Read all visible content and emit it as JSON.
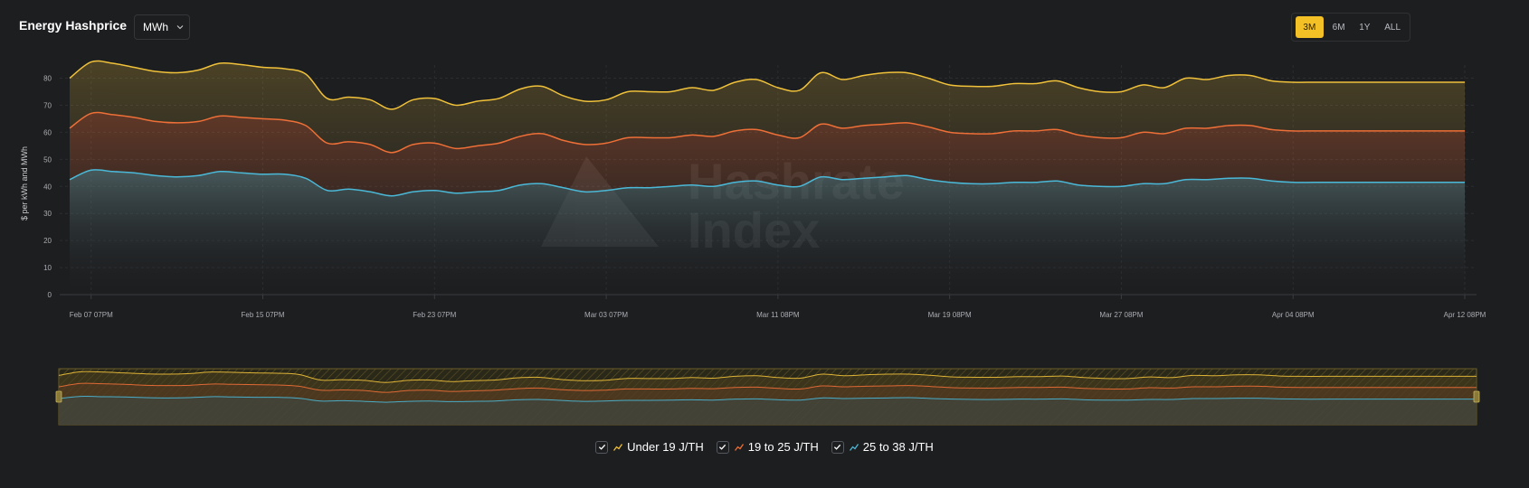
{
  "header": {
    "title": "Energy Hashprice",
    "unit_select": "MWh",
    "ranges": [
      "3M",
      "6M",
      "1Y",
      "ALL"
    ],
    "active_range": "3M"
  },
  "watermark": "Hashrate Index",
  "colors": {
    "background": "#1d1e20",
    "accent": "#f3c026",
    "series": [
      "#f0c13a",
      "#ee6f37",
      "#4ab9d8"
    ]
  },
  "icons": [
    "chevron-down-icon",
    "check-icon",
    "line-glyph-icon",
    "hashrate-index-logo"
  ],
  "chart_data": {
    "type": "area",
    "ylabel": "$ per kWh and MWh",
    "ylim": [
      0,
      85
    ],
    "yticks": [
      0,
      10,
      20,
      30,
      40,
      50,
      60,
      70,
      80
    ],
    "grid": true,
    "legend_placement": "bottom-center",
    "x_tick_labels": [
      "Feb 07 07PM",
      "Feb 15 07PM",
      "Feb 23 07PM",
      "Mar 03 07PM",
      "Mar 11 08PM",
      "Mar 19 08PM",
      "Mar 27 08PM",
      "Apr 04 08PM",
      "Apr 12 08PM"
    ],
    "x": [
      "Feb 06",
      "Feb 07",
      "Feb 08",
      "Feb 09",
      "Feb 10",
      "Feb 11",
      "Feb 12",
      "Feb 13",
      "Feb 14",
      "Feb 15",
      "Feb 16",
      "Feb 17",
      "Feb 18",
      "Feb 19",
      "Feb 20",
      "Feb 21",
      "Feb 22",
      "Feb 23",
      "Feb 24",
      "Feb 25",
      "Feb 26",
      "Feb 27",
      "Feb 28",
      "Mar 01",
      "Mar 02",
      "Mar 03",
      "Mar 04",
      "Mar 05",
      "Mar 06",
      "Mar 07",
      "Mar 08",
      "Mar 09",
      "Mar 10",
      "Mar 11",
      "Mar 12",
      "Mar 13",
      "Mar 14",
      "Mar 15",
      "Mar 16",
      "Mar 17",
      "Mar 18",
      "Mar 19",
      "Mar 20",
      "Mar 21",
      "Mar 22",
      "Mar 23",
      "Mar 24",
      "Mar 25",
      "Mar 26",
      "Mar 27",
      "Mar 28",
      "Mar 29",
      "Mar 30",
      "Mar 31",
      "Apr 01",
      "Apr 02",
      "Apr 03",
      "Apr 04",
      "Apr 05",
      "Apr 06",
      "Apr 07",
      "Apr 08",
      "Apr 09",
      "Apr 10",
      "Apr 11",
      "Apr 12"
    ],
    "series": [
      {
        "name": "Under 19 J/TH",
        "values": [
          80,
          86,
          85.5,
          84,
          82.5,
          82,
          83,
          85.5,
          85,
          84,
          83.5,
          81.5,
          72.5,
          73,
          72,
          68.5,
          72,
          72.5,
          70,
          71.5,
          72.5,
          76,
          77,
          73.5,
          71.5,
          72,
          75,
          75,
          75,
          76.5,
          75.5,
          78.5,
          79.5,
          76.5,
          75.5,
          82,
          79.5,
          81,
          82,
          82,
          80,
          77.5,
          77,
          77,
          78,
          78,
          79,
          76.5,
          75,
          75,
          77.5,
          76.5,
          80,
          79.5,
          81,
          81,
          79,
          78.5,
          78.5,
          78.5,
          78.5,
          78.5,
          78.5,
          78.5,
          78.5,
          78.5
        ]
      },
      {
        "name": "19 to 25 J/TH",
        "values": [
          61.5,
          67,
          66.5,
          65.5,
          64,
          63.5,
          64,
          66,
          65.5,
          65,
          64.5,
          62.5,
          56,
          56.5,
          55.5,
          52.5,
          55.5,
          56,
          54,
          55,
          56,
          58.5,
          59.5,
          57,
          55.5,
          56,
          58,
          58,
          58,
          59,
          58.5,
          60.5,
          61,
          59,
          58,
          63,
          61.5,
          62.5,
          63,
          63.5,
          62,
          60,
          59.5,
          59.5,
          60.5,
          60.5,
          61,
          59,
          58,
          58,
          60,
          59.5,
          61.5,
          61.5,
          62.5,
          62.5,
          61,
          60.5,
          60.5,
          60.5,
          60.5,
          60.5,
          60.5,
          60.5,
          60.5,
          60.5
        ]
      },
      {
        "name": "25 to 38 J/TH",
        "values": [
          42.5,
          46,
          45.5,
          45,
          44,
          43.5,
          44,
          45.5,
          45,
          44.5,
          44.5,
          43,
          38.5,
          39,
          38,
          36.5,
          38,
          38.5,
          37.5,
          38,
          38.5,
          40.5,
          41,
          39.5,
          38,
          38.5,
          39.5,
          39.5,
          40,
          40.5,
          40,
          41.5,
          42,
          40.5,
          40,
          43.5,
          42.5,
          43,
          43.5,
          44,
          42.5,
          41.5,
          41,
          41,
          41.5,
          41.5,
          42,
          40.5,
          40,
          40,
          41,
          41,
          42.5,
          42.5,
          43,
          43,
          42,
          41.5,
          41.5,
          41.5,
          41.5,
          41.5,
          41.5,
          41.5,
          41.5,
          41.5
        ]
      }
    ]
  }
}
